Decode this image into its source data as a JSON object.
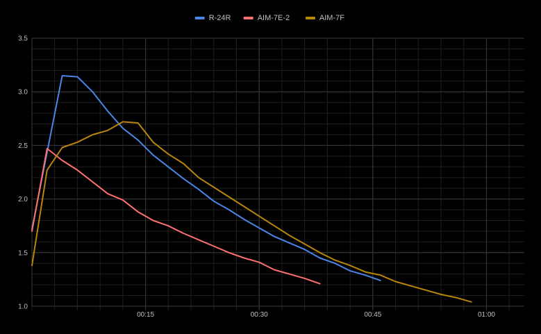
{
  "chart_data": {
    "type": "line",
    "x_unit": "seconds",
    "xlim": [
      0,
      65
    ],
    "ylim": [
      1.0,
      3.5
    ],
    "grid": true,
    "legend_position": "top-center",
    "background": "#000000",
    "y_ticks": [
      {
        "value": 1.0,
        "label": "1.0"
      },
      {
        "value": 1.5,
        "label": "1.5"
      },
      {
        "value": 2.0,
        "label": "2.0"
      },
      {
        "value": 2.5,
        "label": "2.5"
      },
      {
        "value": 3.0,
        "label": "3.0"
      },
      {
        "value": 3.5,
        "label": "3.5"
      }
    ],
    "x_ticks": [
      {
        "value": 15,
        "label": "00:15"
      },
      {
        "value": 30,
        "label": "00:30"
      },
      {
        "value": 45,
        "label": "00:45"
      },
      {
        "value": 60,
        "label": "01:00"
      }
    ],
    "series": [
      {
        "name": "R-24R",
        "color": "#4a86e8",
        "points": [
          [
            0,
            1.72
          ],
          [
            4,
            3.15
          ],
          [
            6,
            3.14
          ],
          [
            8,
            3.0
          ],
          [
            10,
            2.82
          ],
          [
            12,
            2.66
          ],
          [
            14,
            2.55
          ],
          [
            16,
            2.41
          ],
          [
            18,
            2.3
          ],
          [
            20,
            2.19
          ],
          [
            22,
            2.09
          ],
          [
            24,
            1.98
          ],
          [
            26,
            1.9
          ],
          [
            28,
            1.81
          ],
          [
            30,
            1.73
          ],
          [
            32,
            1.65
          ],
          [
            34,
            1.59
          ],
          [
            36,
            1.53
          ],
          [
            38,
            1.45
          ],
          [
            40,
            1.4
          ],
          [
            42,
            1.33
          ],
          [
            44,
            1.29
          ],
          [
            46,
            1.24
          ]
        ]
      },
      {
        "name": "AIM-7E-2",
        "color": "#ff7070",
        "points": [
          [
            0,
            1.7
          ],
          [
            2,
            2.47
          ],
          [
            4,
            2.36
          ],
          [
            6,
            2.27
          ],
          [
            8,
            2.16
          ],
          [
            10,
            2.05
          ],
          [
            12,
            1.99
          ],
          [
            14,
            1.88
          ],
          [
            16,
            1.8
          ],
          [
            18,
            1.75
          ],
          [
            20,
            1.68
          ],
          [
            22,
            1.62
          ],
          [
            24,
            1.56
          ],
          [
            26,
            1.5
          ],
          [
            28,
            1.45
          ],
          [
            30,
            1.41
          ],
          [
            32,
            1.34
          ],
          [
            34,
            1.3
          ],
          [
            36,
            1.26
          ],
          [
            38,
            1.21
          ]
        ]
      },
      {
        "name": "AIM-7F",
        "color": "#b8860b",
        "points": [
          [
            0,
            1.38
          ],
          [
            2,
            2.27
          ],
          [
            4,
            2.48
          ],
          [
            6,
            2.53
          ],
          [
            8,
            2.6
          ],
          [
            10,
            2.64
          ],
          [
            12,
            2.72
          ],
          [
            14,
            2.71
          ],
          [
            16,
            2.53
          ],
          [
            18,
            2.42
          ],
          [
            20,
            2.33
          ],
          [
            22,
            2.2
          ],
          [
            24,
            2.11
          ],
          [
            26,
            2.02
          ],
          [
            28,
            1.93
          ],
          [
            30,
            1.84
          ],
          [
            32,
            1.75
          ],
          [
            34,
            1.66
          ],
          [
            36,
            1.58
          ],
          [
            38,
            1.5
          ],
          [
            40,
            1.43
          ],
          [
            42,
            1.38
          ],
          [
            44,
            1.32
          ],
          [
            46,
            1.29
          ],
          [
            48,
            1.23
          ],
          [
            50,
            1.19
          ],
          [
            52,
            1.15
          ],
          [
            54,
            1.11
          ],
          [
            56,
            1.08
          ],
          [
            58,
            1.04
          ]
        ]
      }
    ]
  }
}
